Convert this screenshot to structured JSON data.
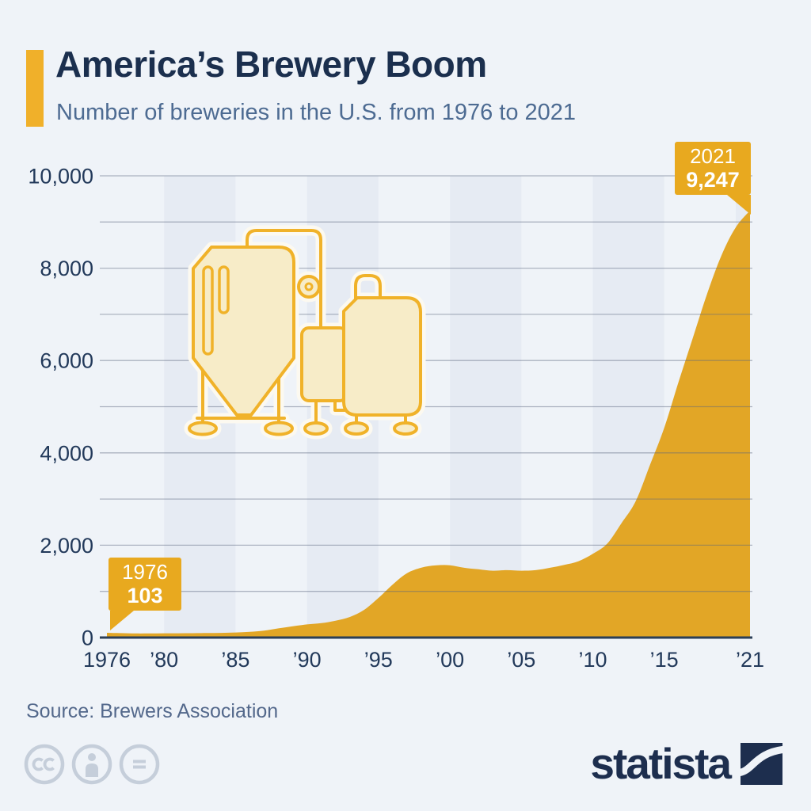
{
  "header": {
    "title": "America’s Brewery Boom",
    "subtitle": "Number of breweries in the U.S. from 1976 to 2021",
    "accent_color": "#f0b02a",
    "title_color": "#1b2f4e",
    "subtitle_color": "#4d6b92"
  },
  "chart_data": {
    "type": "area",
    "title": "Number of breweries in the U.S. from 1976 to 2021",
    "series_name": "Breweries",
    "x": [
      1976,
      1977,
      1978,
      1979,
      1980,
      1981,
      1982,
      1983,
      1984,
      1985,
      1986,
      1987,
      1988,
      1989,
      1990,
      1991,
      1992,
      1993,
      1994,
      1995,
      1996,
      1997,
      1998,
      1999,
      2000,
      2001,
      2002,
      2003,
      2004,
      2005,
      2006,
      2007,
      2008,
      2009,
      2010,
      2011,
      2012,
      2013,
      2014,
      2015,
      2016,
      2017,
      2018,
      2019,
      2020,
      2021
    ],
    "values": [
      103,
      96,
      89,
      90,
      92,
      93,
      95,
      97,
      102,
      110,
      124,
      150,
      199,
      245,
      284,
      312,
      366,
      446,
      601,
      858,
      1149,
      1394,
      1514,
      1562,
      1566,
      1511,
      1478,
      1447,
      1459,
      1447,
      1460,
      1511,
      1574,
      1653,
      1813,
      2033,
      2475,
      2952,
      3739,
      4544,
      5539,
      6490,
      7450,
      8275,
      8884,
      9247
    ],
    "xlabel": "",
    "ylabel": "",
    "xlim": [
      1976,
      2021
    ],
    "ylim": [
      0,
      10000
    ],
    "yticks": [
      0,
      2000,
      4000,
      6000,
      8000,
      10000
    ],
    "ytick_labels": [
      "0",
      "2,000",
      "4,000",
      "6,000",
      "8,000",
      "10,000"
    ],
    "gridline_step": 1000,
    "xticks": [
      1976,
      1980,
      1985,
      1990,
      1995,
      2000,
      2005,
      2010,
      2015,
      2021
    ],
    "xtick_labels": [
      "1976",
      "’80",
      "’85",
      "’90",
      "’95",
      "’00",
      "’05",
      "’10",
      "’15",
      "’21"
    ],
    "grid": "horizontal",
    "legend": "none",
    "stripe_bands": [
      [
        1980,
        1985
      ],
      [
        1990,
        1995
      ],
      [
        2000,
        2005
      ],
      [
        2010,
        2015
      ],
      [
        2020,
        2021
      ]
    ],
    "area_color": "#e2a626",
    "stripe_color": "#e6ebf3",
    "gridline_color": "rgba(90,102,126,0.45)",
    "axis_line_color": "#2b3e57",
    "tick_label_color": "#22395a"
  },
  "callouts": {
    "bg_color": "#e8a91f",
    "start": {
      "label": "1976",
      "value": "103"
    },
    "end": {
      "label": "2021",
      "value": "9,247"
    }
  },
  "footer": {
    "source": "Source: Brewers Association",
    "license": "CC BY-ND",
    "brand": "statista",
    "brand_color": "#1d2e4e",
    "license_icon_color": "#c5ceda"
  }
}
